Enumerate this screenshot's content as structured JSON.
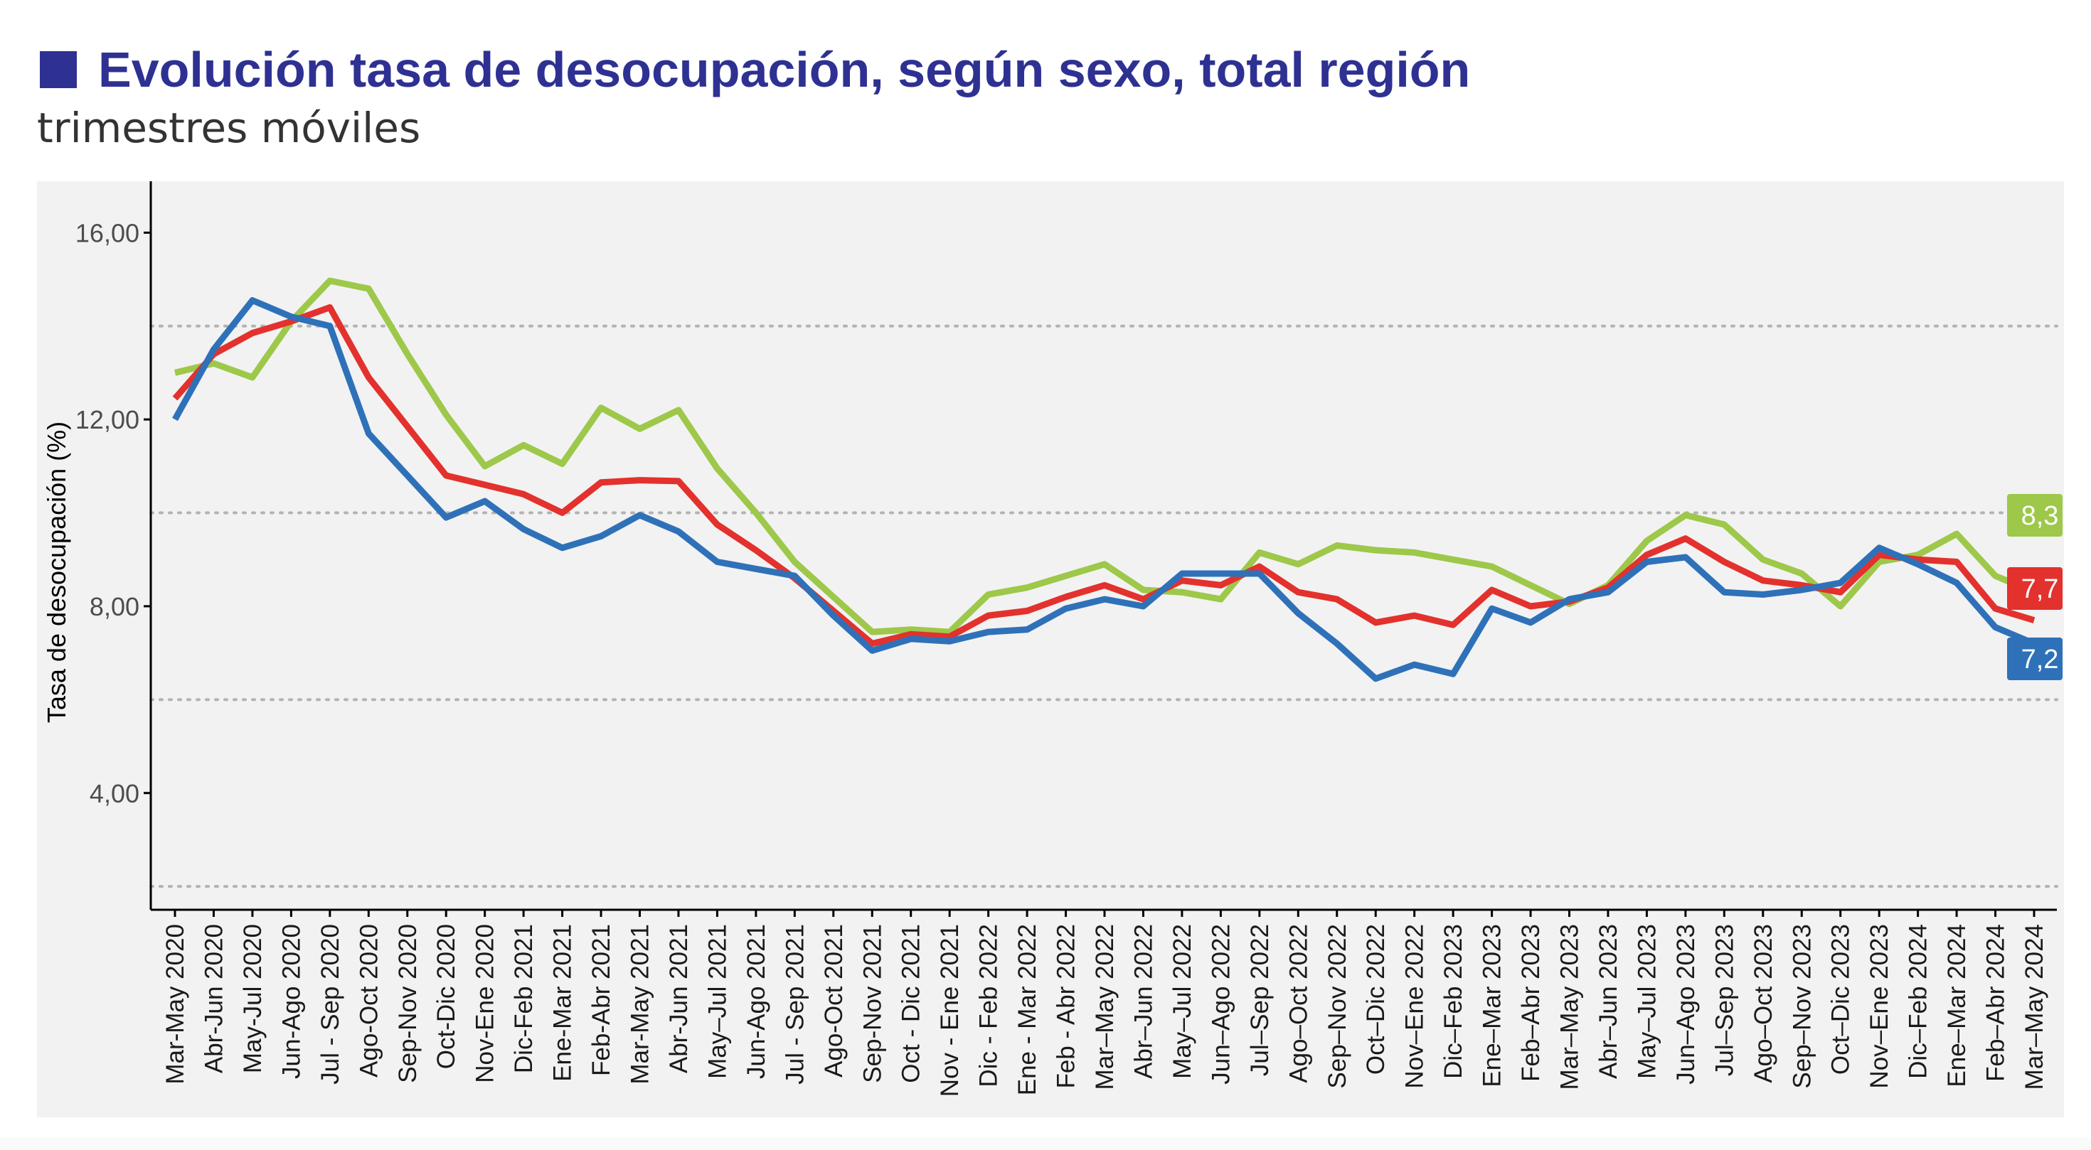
{
  "header": {
    "title": "Evolución tasa de desocupación, según sexo, total región",
    "subtitle": "trimestres móviles"
  },
  "colors": {
    "title": "#2e3192",
    "series_green": "#9dc84a",
    "series_red": "#e3312d",
    "series_blue": "#2f71b8",
    "panel_bg": "#f2f2f2"
  },
  "chart_data": {
    "type": "line",
    "title": "Evolución tasa de desocupación, según sexo, total región",
    "subtitle": "trimestres móviles",
    "xlabel": "",
    "ylabel": "Tasa de desocupación (%)",
    "ylim": [
      1.5,
      17
    ],
    "yticks": [
      4,
      8,
      12,
      16
    ],
    "ytick_labels": [
      "4,00",
      "8,00",
      "12,00",
      "16,00"
    ],
    "dotted_gridlines": [
      2,
      6,
      10,
      14
    ],
    "grid": "dotted horizontal",
    "legend": "none",
    "categories": [
      "Mar-May 2020",
      "Abr-Jun 2020",
      "May-Jul 2020",
      "Jun-Ago 2020",
      "Jul - Sep 2020",
      "Ago-Oct 2020",
      "Sep-Nov 2020",
      "Oct-Dic 2020",
      "Nov-Ene 2020",
      "Dic-Feb 2021",
      "Ene-Mar 2021",
      "Feb-Abr 2021",
      "Mar-May 2021",
      "Abr-Jun 2021",
      "May–Jul 2021",
      "Jun-Ago 2021",
      "Jul - Sep 2021",
      "Ago-Oct 2021",
      "Sep-Nov 2021",
      "Oct - Dic 2021",
      "Nov - Ene 2021",
      "Dic - Feb 2022",
      "Ene - Mar 2022",
      "Feb - Abr 2022",
      "Mar–May 2022",
      "Abr–Jun 2022",
      "May–Jul 2022",
      "Jun–Ago 2022",
      "Jul–Sep 2022",
      "Ago–Oct 2022",
      "Sep–Nov 2022",
      "Oct–Dic 2022",
      "Nov–Ene 2022",
      "Dic–Feb 2023",
      "Ene–Mar 2023",
      "Feb–Abr 2023",
      "Mar–May 2023",
      "Abr–Jun 2023",
      "May–Jul 2023",
      "Jun–Ago 2023",
      "Jul–Sep 2023",
      "Ago–Oct 2023",
      "Sep–Nov 2023",
      "Oct–Dic 2023",
      "Nov–Ene 2023",
      "Dic–Feb 2024",
      "Ene–Mar 2024",
      "Feb–Abr 2024",
      "Mar–May 2024"
    ],
    "series": [
      {
        "color": "#9dc84a",
        "end_label": "8,3",
        "values": [
          13.0,
          13.2,
          12.9,
          14.1,
          14.97,
          14.8,
          13.4,
          12.1,
          11.0,
          11.45,
          11.05,
          12.25,
          11.8,
          12.2,
          10.95,
          10.0,
          8.95,
          8.2,
          7.45,
          7.5,
          7.45,
          8.25,
          8.4,
          8.65,
          8.9,
          8.35,
          8.3,
          8.15,
          9.15,
          8.9,
          9.3,
          9.2,
          9.15,
          9.0,
          8.85,
          8.45,
          8.05,
          8.45,
          9.4,
          9.95,
          9.75,
          9.0,
          8.7,
          8.0,
          8.95,
          9.1,
          9.55,
          8.65,
          8.3
        ]
      },
      {
        "color": "#e3312d",
        "end_label": "7,7",
        "values": [
          12.45,
          13.4,
          13.85,
          14.1,
          14.4,
          12.9,
          11.85,
          10.8,
          10.6,
          10.4,
          10.0,
          10.65,
          10.7,
          10.68,
          9.75,
          9.2,
          8.6,
          7.9,
          7.2,
          7.4,
          7.35,
          7.8,
          7.9,
          8.2,
          8.45,
          8.15,
          8.55,
          8.45,
          8.85,
          8.3,
          8.15,
          7.65,
          7.8,
          7.6,
          8.35,
          8.0,
          8.1,
          8.4,
          9.1,
          9.45,
          8.95,
          8.55,
          8.45,
          8.3,
          9.1,
          9.0,
          8.95,
          7.95,
          7.7
        ]
      },
      {
        "color": "#2f71b8",
        "end_label": "7,2",
        "values": [
          12.0,
          13.5,
          14.55,
          14.2,
          14.0,
          11.7,
          10.8,
          9.9,
          10.25,
          9.65,
          9.25,
          9.5,
          9.95,
          9.6,
          8.95,
          8.8,
          8.65,
          7.8,
          7.05,
          7.3,
          7.25,
          7.45,
          7.5,
          7.95,
          8.15,
          8.0,
          8.7,
          8.7,
          8.7,
          7.85,
          7.2,
          6.45,
          6.75,
          6.55,
          7.95,
          7.65,
          8.15,
          8.3,
          8.95,
          9.05,
          8.3,
          8.25,
          8.35,
          8.5,
          9.25,
          8.9,
          8.5,
          7.55,
          7.2
        ]
      }
    ]
  }
}
